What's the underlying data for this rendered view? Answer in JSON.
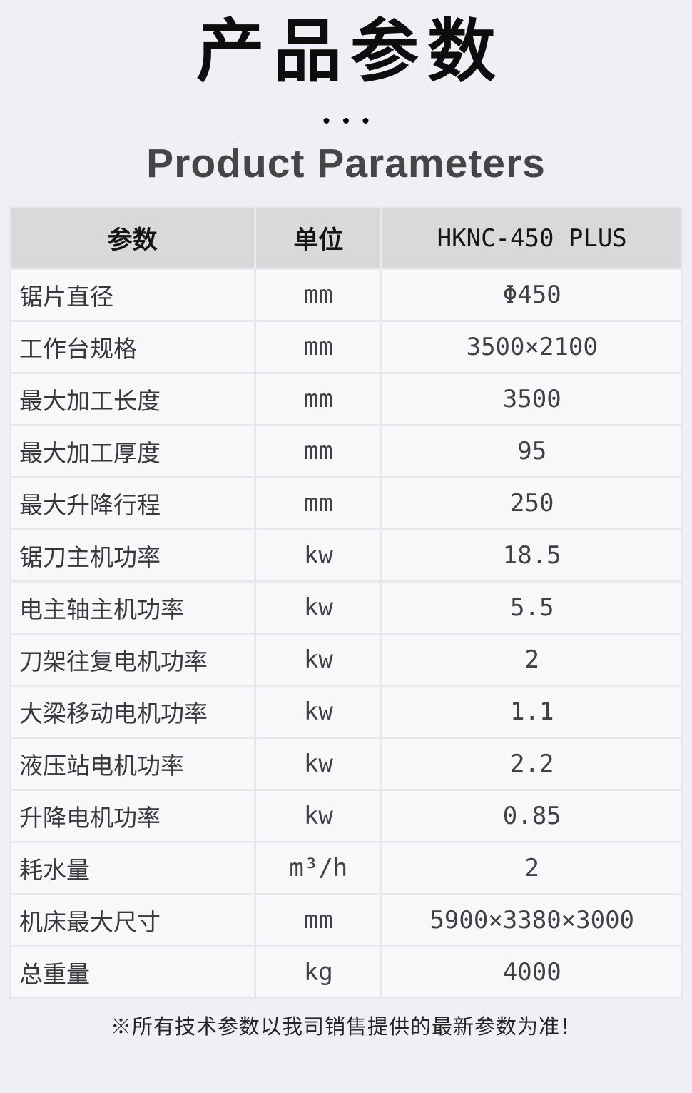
{
  "header": {
    "title": "产品参数",
    "divider_dots": "•••",
    "subtitle": "Product Parameters"
  },
  "table": {
    "columns": [
      "参数",
      "单位",
      "HKNC-450 PLUS"
    ],
    "rows": [
      {
        "param": "锯片直径",
        "unit": "mm",
        "value": "Φ450"
      },
      {
        "param": "工作台规格",
        "unit": "mm",
        "value": "3500×2100"
      },
      {
        "param": "最大加工长度",
        "unit": "mm",
        "value": "3500"
      },
      {
        "param": "最大加工厚度",
        "unit": "mm",
        "value": "95"
      },
      {
        "param": "最大升降行程",
        "unit": "mm",
        "value": "250"
      },
      {
        "param": "锯刀主机功率",
        "unit": "kw",
        "value": "18.5"
      },
      {
        "param": "电主轴主机功率",
        "unit": "kw",
        "value": "5.5"
      },
      {
        "param": "刀架往复电机功率",
        "unit": "kw",
        "value": "2"
      },
      {
        "param": "大梁移动电机功率",
        "unit": "kw",
        "value": "1.1"
      },
      {
        "param": "液压站电机功率",
        "unit": "kw",
        "value": "2.2"
      },
      {
        "param": "升降电机功率",
        "unit": "kw",
        "value": "0.85"
      },
      {
        "param": "耗水量",
        "unit": "m³/h",
        "value": "2"
      },
      {
        "param": "机床最大尺寸",
        "unit": "mm",
        "value": "5900×3380×3000"
      },
      {
        "param": "总重量",
        "unit": "kg",
        "value": "4000"
      }
    ]
  },
  "footnote": "※所有技术参数以我司销售提供的最新参数为准！",
  "colors": {
    "page_bg": "#eef0f5",
    "header_bg": "#d8d9da",
    "cell_bg": "#f7f8fa",
    "grid_line": "#e7e9ed",
    "title_text": "#0d0d0d",
    "subtitle_text": "#454545",
    "body_text": "#36383b",
    "value_text": "#3f4144"
  }
}
